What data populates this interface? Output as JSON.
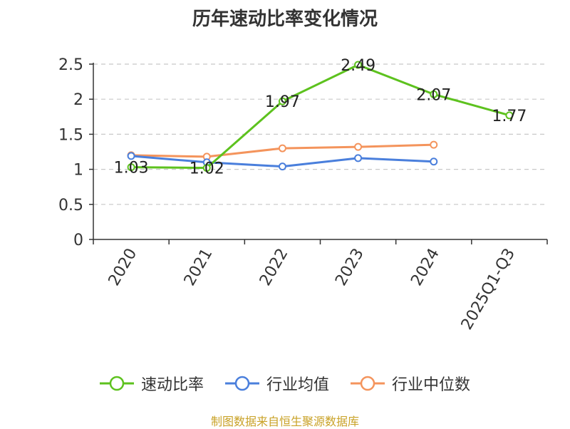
{
  "chart_data": {
    "type": "line",
    "title": "历年速动比率变化情况",
    "categories": [
      "2020",
      "2021",
      "2022",
      "2023",
      "2024",
      "2025Q1-Q3"
    ],
    "ylim": [
      0,
      2.5
    ],
    "yticks": [
      "0",
      "0.5",
      "1",
      "1.5",
      "2",
      "2.5"
    ],
    "ytick_values": [
      0,
      0.5,
      1,
      1.5,
      2,
      2.5
    ],
    "grid": true,
    "legend_position": "bottom",
    "series": [
      {
        "name": "速动比率",
        "color": "#5dc21e",
        "values": [
          1.03,
          1.02,
          1.97,
          2.49,
          2.07,
          1.77
        ],
        "labels": [
          "1.03",
          "1.02",
          "1.97",
          "2.49",
          "2.07",
          "1.77"
        ],
        "show_labels": true
      },
      {
        "name": "行业均值",
        "color": "#4a7fdc",
        "values": [
          1.19,
          1.1,
          1.04,
          1.16,
          1.11,
          null
        ],
        "show_labels": false
      },
      {
        "name": "行业中位数",
        "color": "#f4945c",
        "values": [
          1.2,
          1.18,
          1.3,
          1.32,
          1.35,
          null
        ],
        "show_labels": false
      }
    ]
  },
  "source_text": "制图数据来自恒生聚源数据库"
}
